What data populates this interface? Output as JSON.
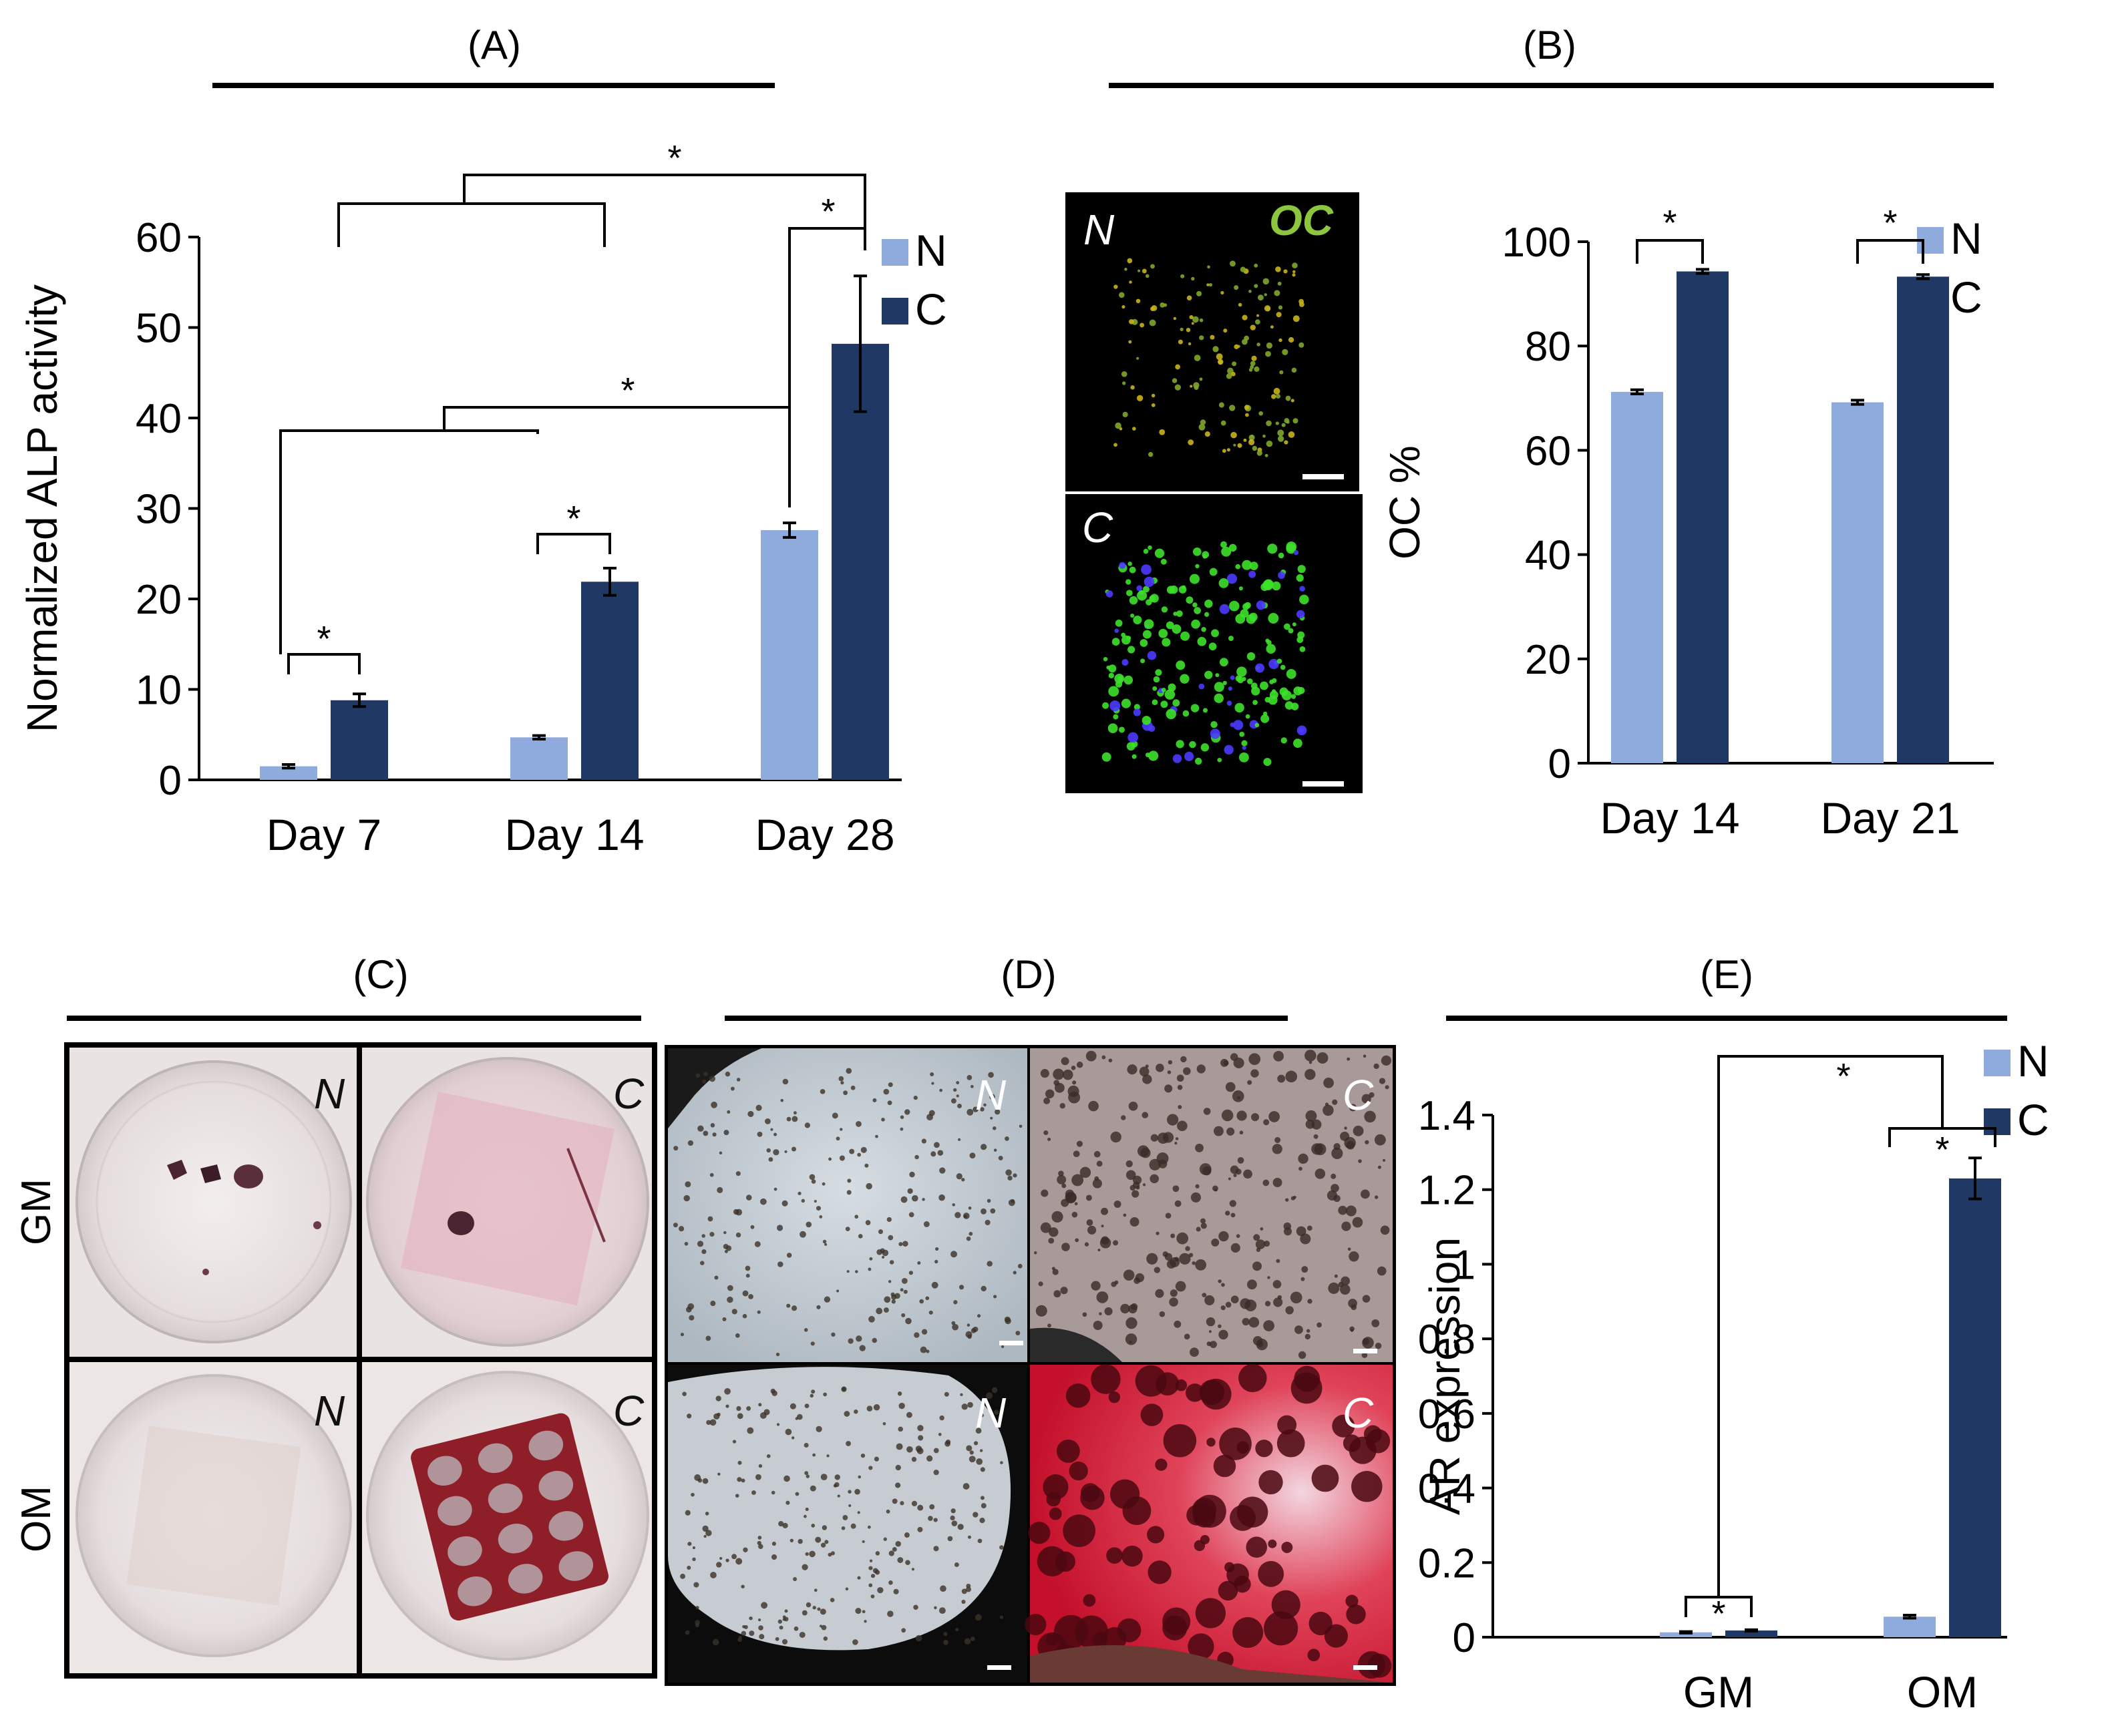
{
  "panels": {
    "A": "(A)",
    "B": "(B)",
    "C": "(C)",
    "D": "(D)",
    "E": "(E)"
  },
  "colors": {
    "N": "#8faadc",
    "C": "#1f3864"
  },
  "chart_data": [
    {
      "id": "A",
      "type": "bar",
      "ylabel": "Normalized ALP activity",
      "categories": [
        "Day 7",
        "Day 14",
        "Day 28"
      ],
      "series": [
        {
          "name": "N",
          "values": [
            1.5,
            4.7,
            27.6
          ],
          "errors": [
            0.2,
            0.2,
            0.8
          ]
        },
        {
          "name": "C",
          "values": [
            8.8,
            21.9,
            48.2
          ],
          "errors": [
            0.7,
            1.5,
            7.5
          ]
        }
      ],
      "ylim": [
        0,
        60
      ],
      "yticks": [
        "0",
        "10",
        "20",
        "30",
        "40",
        "50",
        "60"
      ],
      "legend": "top-right",
      "significance": [
        "*",
        "*",
        "*",
        "*",
        "*",
        "*"
      ]
    },
    {
      "id": "B",
      "type": "bar",
      "ylabel": "OC %",
      "categories": [
        "Day 14",
        "Day 21"
      ],
      "series": [
        {
          "name": "N",
          "values": [
            71.2,
            69.2
          ],
          "errors": [
            0.4,
            0.4
          ]
        },
        {
          "name": "C",
          "values": [
            94.3,
            93.3
          ],
          "errors": [
            0.4,
            0.4
          ]
        }
      ],
      "ylim": [
        0,
        100
      ],
      "yticks": [
        "0",
        "20",
        "40",
        "60",
        "80",
        "100"
      ],
      "legend": "top-right",
      "significance": [
        "*",
        "*"
      ]
    },
    {
      "id": "E",
      "type": "bar",
      "ylabel": "AR expression",
      "categories": [
        "GM",
        "OM"
      ],
      "series": [
        {
          "name": "N",
          "values": [
            0.013,
            0.055
          ],
          "errors": [
            0.002,
            0.004
          ]
        },
        {
          "name": "C",
          "values": [
            0.018,
            1.23
          ],
          "errors": [
            0.002,
            0.055
          ]
        }
      ],
      "ylim": [
        0,
        1.4
      ],
      "yticks": [
        "0",
        "0.2",
        "0.4",
        "0.6",
        "0.8",
        "1",
        "1.2",
        "1.4"
      ],
      "legend": "top-right",
      "significance": [
        "*",
        "*",
        "*"
      ]
    }
  ],
  "micrographs_B": {
    "top_label": "N",
    "bottom_label": "C",
    "stain": "OC"
  },
  "panel_C": {
    "rows": [
      "GM",
      "OM"
    ],
    "cols": [
      "N",
      "C"
    ]
  },
  "panel_D": {
    "cols": [
      "N",
      "C"
    ]
  }
}
